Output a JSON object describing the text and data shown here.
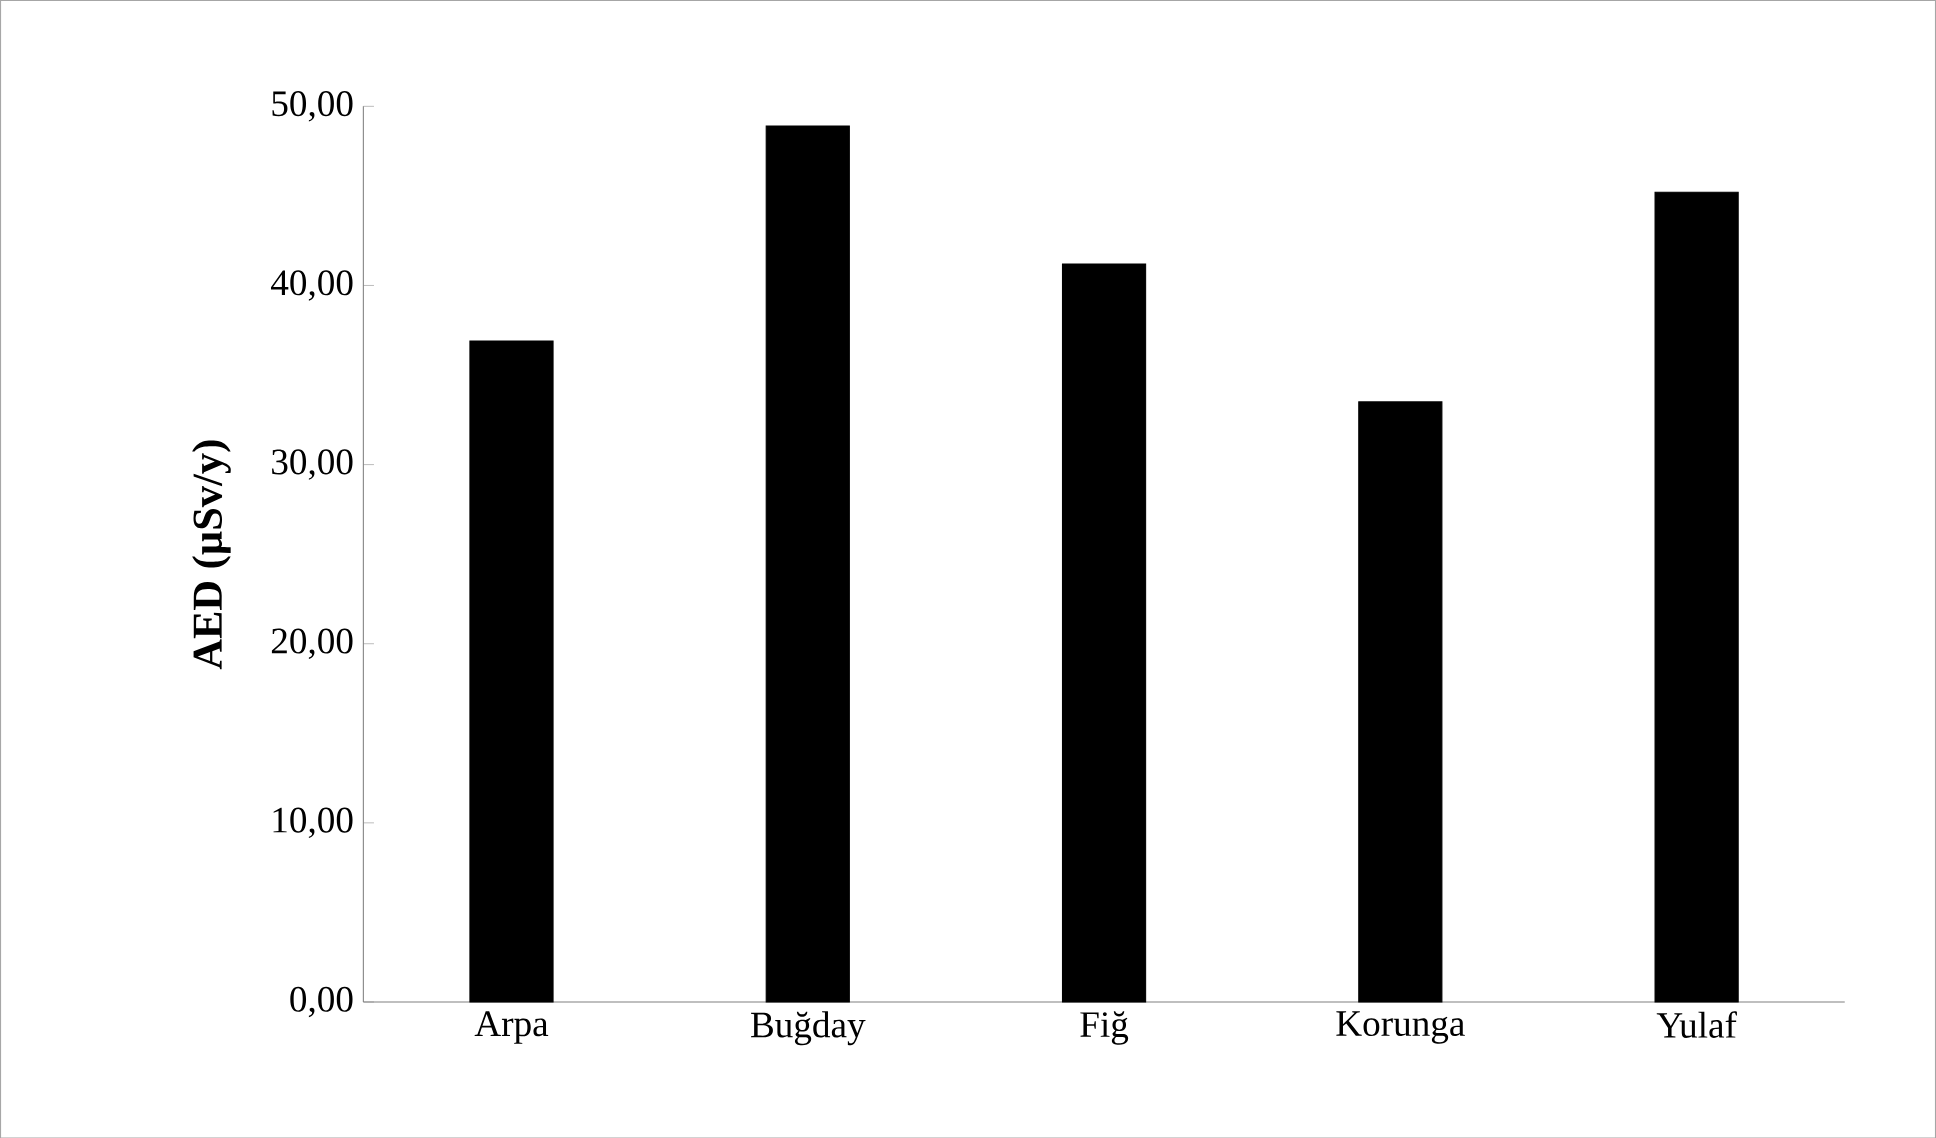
{
  "chart_data": {
    "type": "bar",
    "ylabel": "AED (µSv/y)",
    "categories": [
      "Arpa",
      "Buğday",
      "Fiğ",
      "Korunga",
      "Yulaf"
    ],
    "values": [
      36.9,
      48.9,
      41.2,
      33.5,
      45.2
    ],
    "color": "#000000",
    "ylim": [
      0,
      50
    ],
    "yticks": [
      {
        "value": 0,
        "label": "0,00"
      },
      {
        "value": 10,
        "label": "10,00"
      },
      {
        "value": 20,
        "label": "20,00"
      },
      {
        "value": 30,
        "label": "30,00"
      },
      {
        "value": 40,
        "label": "40,00"
      },
      {
        "value": 50,
        "label": "50,00"
      }
    ],
    "grid": false
  }
}
